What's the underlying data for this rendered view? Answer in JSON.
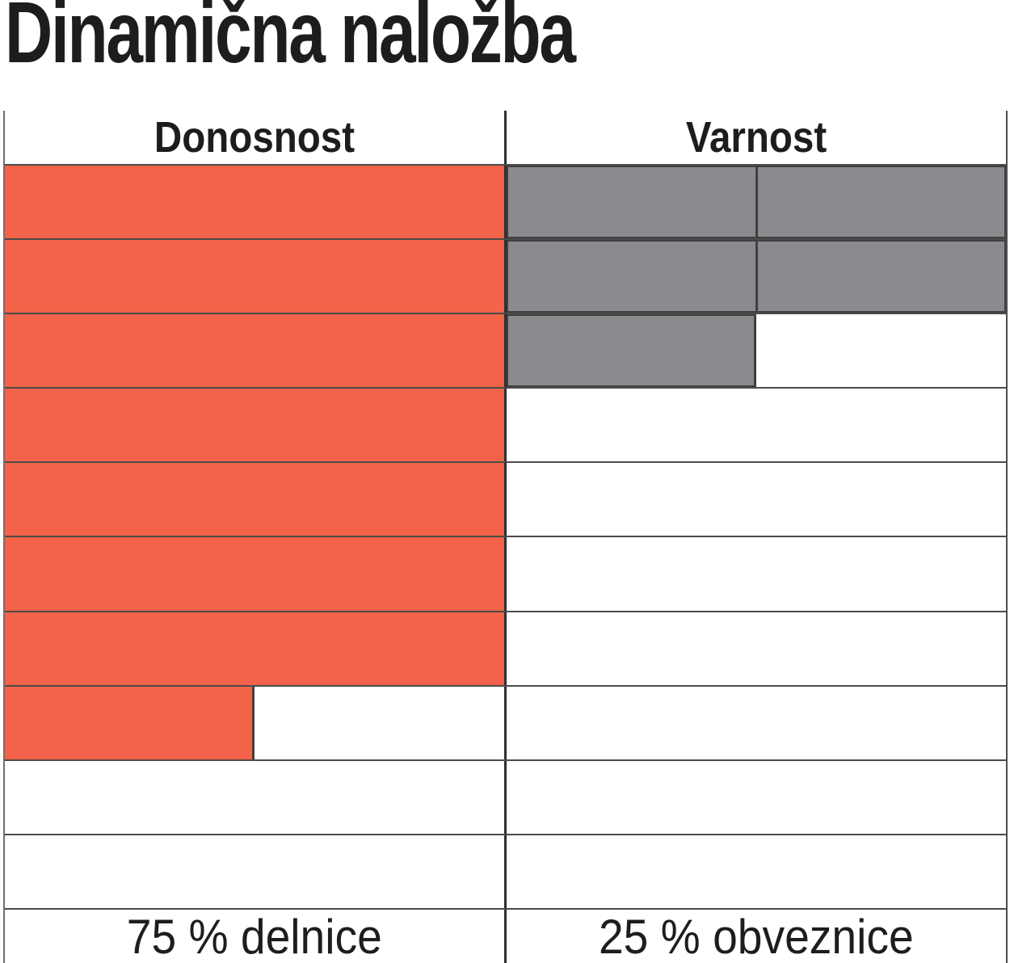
{
  "title": "Dinamična naložba",
  "table": {
    "headers": [
      "Donosnost",
      "Varnost"
    ],
    "footers": [
      "75 % delnice",
      "25 % obveznice"
    ]
  },
  "colors": {
    "donosnost_fill": "#f2634a",
    "varnost_fill": "#8a8b8e",
    "grid_line": "#4b4b4b",
    "column_divider": "#2e2e2e",
    "text": "#1d1d1b",
    "background": "#ffffff"
  },
  "chart_data": {
    "type": "bar",
    "subtype": "block-rating-grid",
    "title": "Dinamična naložba",
    "rows": 10,
    "max_score": 10,
    "fill_direction": "top-down",
    "categories": [
      "Donosnost",
      "Varnost"
    ],
    "series": [
      {
        "name": "Donosnost",
        "key": "donosnost",
        "value": 7.5,
        "color": "#f2634a",
        "segmented": false,
        "footer_label": "75 % delnice"
      },
      {
        "name": "Varnost",
        "key": "varnost",
        "value": 2.5,
        "color": "#8a8b8e",
        "segmented": true,
        "footer_label": "25 % obveznice"
      }
    ],
    "allocation": {
      "delnice_pct": 75,
      "obveznice_pct": 25
    },
    "legend_position": "none",
    "grid": true
  }
}
